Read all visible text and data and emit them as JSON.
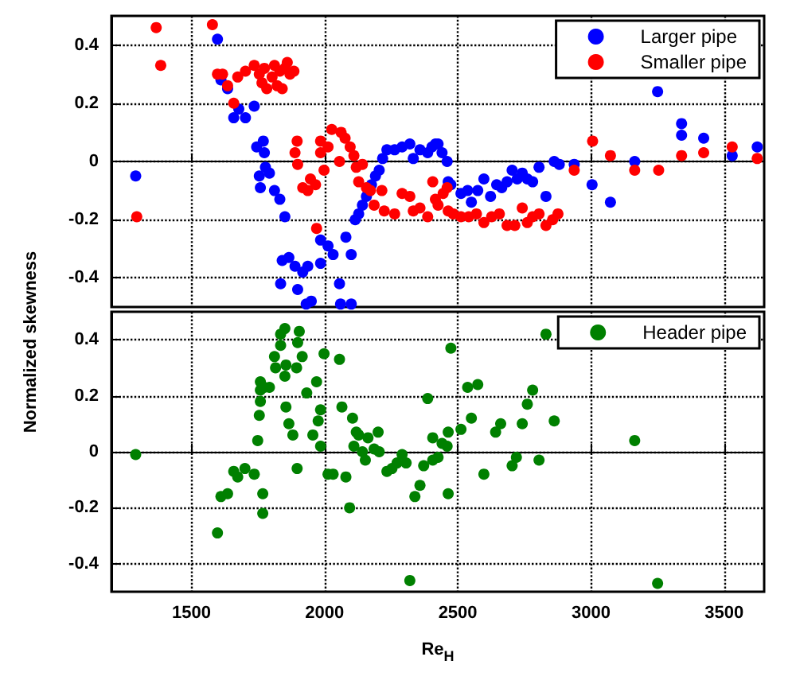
{
  "chart_data": [
    {
      "type": "scatter",
      "ylabel": "Normalized skewness",
      "xlim": [
        1200,
        3650
      ],
      "xticks": [
        1500,
        2000,
        2500,
        3000,
        3500
      ],
      "ylim": [
        -0.5,
        0.5
      ],
      "yticks": [
        -0.4,
        -0.2,
        0,
        0.2,
        0.4
      ],
      "grid": true,
      "legend": "top right",
      "marker": "circle",
      "tick_labels": "y",
      "series": [
        {
          "name": "Larger pipe",
          "color": "#0000ff",
          "x": [
            1291,
            1598,
            1611,
            1636,
            1659,
            1678,
            1703,
            1736,
            1745,
            1770,
            1774,
            1755,
            1778,
            1793,
            1759,
            1812,
            1832,
            1851,
            1841,
            1866,
            1889,
            1918,
            1937,
            1835,
            1899,
            1950,
            1931,
            1985,
            2013,
            2032,
            1985,
            2080,
            2100,
            2056,
            2060,
            2100,
            2115,
            2128,
            2142,
            2157,
            2176,
            2191,
            2205,
            2218,
            2234,
            2263,
            2291,
            2320,
            2333,
            2358,
            2387,
            2416,
            2403,
            2426,
            2441,
            2460,
            2464,
            2474,
            2512,
            2537,
            2551,
            2575,
            2598,
            2623,
            2646,
            2665,
            2685,
            2704,
            2723,
            2742,
            2761,
            2781,
            2805,
            2831,
            2862,
            2881,
            2937,
            3004,
            3073,
            3164,
            3250,
            3340,
            3340,
            3423,
            3530,
            3624
          ],
          "values": [
            -0.05,
            0.42,
            0.28,
            0.25,
            0.15,
            0.18,
            0.15,
            0.19,
            0.05,
            0.07,
            0.03,
            -0.05,
            -0.02,
            -0.04,
            -0.09,
            -0.1,
            -0.13,
            -0.19,
            -0.34,
            -0.33,
            -0.36,
            -0.38,
            -0.36,
            -0.42,
            -0.44,
            -0.48,
            -0.49,
            -0.27,
            -0.29,
            -0.32,
            -0.35,
            -0.26,
            -0.32,
            -0.42,
            -0.49,
            -0.49,
            -0.2,
            -0.18,
            -0.15,
            -0.12,
            -0.08,
            -0.05,
            -0.03,
            0.01,
            0.04,
            0.04,
            0.05,
            0.06,
            0.01,
            0.04,
            0.03,
            0.06,
            0.05,
            0.06,
            0.03,
            0,
            -0.07,
            -0.08,
            -0.11,
            -0.1,
            -0.14,
            -0.1,
            -0.06,
            -0.12,
            -0.08,
            -0.09,
            -0.07,
            -0.03,
            -0.06,
            -0.04,
            -0.06,
            -0.07,
            -0.02,
            -0.12,
            0,
            -0.01,
            -0.01,
            -0.08,
            -0.14,
            0,
            0.24,
            0.13,
            0.09,
            0.08,
            0.02,
            0.05
          ]
        },
        {
          "name": "Smaller pipe",
          "color": "#ff0000",
          "x": [
            1368,
            1385,
            1295,
            1579,
            1598,
            1617,
            1636,
            1659,
            1674,
            1703,
            1736,
            1755,
            1765,
            1774,
            1783,
            1803,
            1812,
            1822,
            1832,
            1841,
            1851,
            1860,
            1870,
            1885,
            1897,
            1889,
            1899,
            1918,
            1937,
            1947,
            1966,
            1985,
            1985,
            1998,
            2013,
            2027,
            2062,
            2056,
            2077,
            2096,
            2110,
            2119,
            2128,
            2142,
            2157,
            2172,
            2186,
            2215,
            2224,
            2263,
            2291,
            2320,
            2333,
            2358,
            2387,
            2406,
            2416,
            1970,
            2426,
            2445,
            2460,
            2464,
            2483,
            2512,
            2541,
            2570,
            2598,
            2627,
            2656,
            2685,
            2714,
            2742,
            2761,
            2781,
            2805,
            2831,
            2856,
            2876,
            2937,
            3006,
            3073,
            3164,
            3254,
            3340,
            3423,
            3530,
            3624
          ],
          "values": [
            0.46,
            0.33,
            -0.19,
            0.47,
            0.3,
            0.3,
            0.26,
            0.2,
            0.29,
            0.31,
            0.33,
            0.3,
            0.27,
            0.32,
            0.25,
            0.29,
            0.33,
            0.26,
            0.31,
            0.25,
            0.32,
            0.34,
            0.3,
            0.31,
            0.07,
            0.03,
            -0.01,
            -0.09,
            -0.1,
            -0.06,
            -0.08,
            0.07,
            0.03,
            -0.03,
            0.05,
            0.11,
            0.1,
            0,
            0.08,
            0.05,
            0.02,
            -0.02,
            -0.07,
            -0.01,
            -0.09,
            -0.1,
            -0.15,
            -0.1,
            -0.17,
            -0.18,
            -0.11,
            -0.12,
            -0.17,
            -0.16,
            -0.19,
            -0.07,
            -0.13,
            -0.23,
            -0.15,
            -0.11,
            -0.09,
            -0.17,
            -0.18,
            -0.19,
            -0.19,
            -0.18,
            -0.21,
            -0.19,
            -0.18,
            -0.22,
            -0.22,
            -0.16,
            -0.21,
            -0.19,
            -0.18,
            -0.22,
            -0.2,
            -0.18,
            -0.03,
            0.07,
            0.02,
            -0.03,
            -0.03,
            0.02,
            0.03,
            0.05,
            0.01
          ]
        }
      ]
    },
    {
      "type": "scatter",
      "xlabel": "Re$_{H}$",
      "xlim": [
        1200,
        3650
      ],
      "xticks": [
        1500,
        2000,
        2500,
        3000,
        3500
      ],
      "ylim": [
        -0.5,
        0.5
      ],
      "yticks": [
        -0.4,
        -0.2,
        0,
        0.2,
        0.4
      ],
      "grid": true,
      "legend": "top right",
      "marker": "circle",
      "series": [
        {
          "name": "Header pipe",
          "color": "#008000",
          "x": [
            1291,
            1598,
            1611,
            1636,
            1659,
            1674,
            1701,
            1736,
            1749,
            1755,
            1759,
            1759,
            1759,
            1774,
            1793,
            1768,
            1768,
            1812,
            1816,
            1835,
            1835,
            1851,
            1851,
            1855,
            1855,
            1866,
            1881,
            1897,
            1899,
            1905,
            1895,
            1916,
            1933,
            1956,
            1970,
            1976,
            1985,
            1985,
            1998,
            2013,
            2032,
            2056,
            2065,
            2080,
            2094,
            2105,
            2110,
            2119,
            2128,
            2142,
            2153,
            2163,
            2186,
            2205,
            2201,
            2234,
            2253,
            2272,
            2291,
            2306,
            2320,
            2339,
            2358,
            2372,
            2387,
            2406,
            2406,
            2426,
            2441,
            2460,
            2464,
            2464,
            2474,
            2512,
            2537,
            2551,
            2575,
            2598,
            2642,
            2661,
            2704,
            2720,
            2742,
            2761,
            2781,
            2805,
            2831,
            2862,
            3164,
            3250
          ],
          "values": [
            -0.01,
            -0.29,
            -0.16,
            -0.15,
            -0.07,
            -0.09,
            -0.06,
            -0.08,
            0.04,
            0.13,
            0.18,
            0.22,
            0.25,
            0.23,
            0.23,
            -0.15,
            -0.22,
            0.34,
            0.3,
            0.38,
            0.42,
            0.44,
            0.27,
            0.31,
            0.16,
            0.1,
            0.06,
            -0.06,
            0.39,
            0.43,
            0.3,
            0.34,
            0.21,
            0.06,
            0.25,
            0.11,
            0.15,
            0.02,
            0.35,
            -0.08,
            -0.08,
            0.33,
            0.16,
            -0.09,
            -0.2,
            0.12,
            0.02,
            0.07,
            0.06,
            0,
            -0.03,
            0.05,
            0.01,
            0,
            0.07,
            -0.07,
            -0.06,
            -0.04,
            -0.01,
            -0.04,
            -0.46,
            -0.16,
            -0.12,
            -0.05,
            0.19,
            0.05,
            -0.03,
            -0.02,
            0.03,
            0.02,
            0.07,
            -0.15,
            0.37,
            0.08,
            0.23,
            0.12,
            0.24,
            -0.08,
            0.07,
            0.1,
            -0.05,
            -0.02,
            0.1,
            0.17,
            0.22,
            -0.03,
            0.42,
            0.11,
            0.04,
            -0.47
          ]
        }
      ]
    }
  ]
}
